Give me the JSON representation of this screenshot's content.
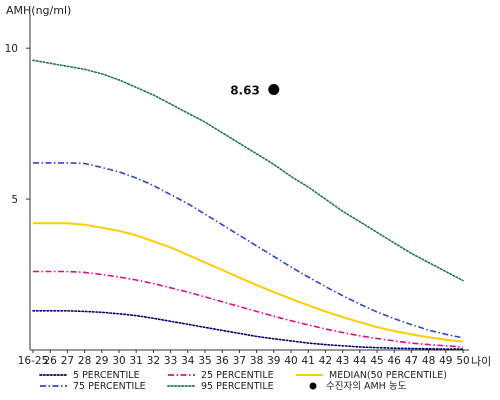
{
  "chart_data": {
    "type": "line",
    "ylabel": "AMH(ng/ml)",
    "xlabel": "나이",
    "x": [
      "16-25",
      "26",
      "27",
      "28",
      "29",
      "30",
      "31",
      "32",
      "33",
      "34",
      "35",
      "36",
      "37",
      "38",
      "39",
      "40",
      "41",
      "42",
      "43",
      "44",
      "45",
      "46",
      "47",
      "48",
      "49",
      "50"
    ],
    "y_ticks": [
      "10",
      "5"
    ],
    "ylim": [
      0,
      11
    ],
    "grid": false,
    "legend_position": "bottom",
    "series": [
      {
        "name": "5 PERCENTILE",
        "color": "#000066",
        "dash": "dotted",
        "values": [
          1.3,
          1.3,
          1.3,
          1.28,
          1.25,
          1.2,
          1.14,
          1.05,
          0.95,
          0.85,
          0.75,
          0.65,
          0.55,
          0.45,
          0.37,
          0.3,
          0.23,
          0.18,
          0.14,
          0.1,
          0.08,
          0.06,
          0.05,
          0.04,
          0.03,
          0.03
        ]
      },
      {
        "name": "75 PERCENTILE",
        "color": "#3344cc",
        "dash": "dash-dot",
        "values": [
          6.2,
          6.2,
          6.2,
          6.18,
          6.05,
          5.9,
          5.7,
          5.45,
          5.15,
          4.85,
          4.5,
          4.15,
          3.8,
          3.45,
          3.1,
          2.75,
          2.42,
          2.1,
          1.8,
          1.52,
          1.26,
          1.04,
          0.84,
          0.66,
          0.52,
          0.4
        ]
      },
      {
        "name": "25 PERCENTILE",
        "color": "#e0117f",
        "dash": "dash-dot",
        "values": [
          2.6,
          2.6,
          2.6,
          2.57,
          2.5,
          2.42,
          2.32,
          2.2,
          2.06,
          1.92,
          1.76,
          1.6,
          1.44,
          1.28,
          1.12,
          0.97,
          0.83,
          0.7,
          0.58,
          0.47,
          0.38,
          0.3,
          0.23,
          0.18,
          0.14,
          0.1
        ]
      },
      {
        "name": "95 PERCENTILE",
        "color": "#227744",
        "dash": "dotted",
        "values": [
          9.6,
          9.5,
          9.4,
          9.3,
          9.15,
          8.95,
          8.7,
          8.45,
          8.15,
          7.85,
          7.55,
          7.2,
          6.85,
          6.5,
          6.15,
          5.75,
          5.4,
          5.0,
          4.6,
          4.25,
          3.9,
          3.55,
          3.2,
          2.9,
          2.6,
          2.3
        ]
      },
      {
        "name": "MEDIAN(50 PERCENTILE)",
        "color": "#ffcc00",
        "dash": "solid",
        "values": [
          4.2,
          4.2,
          4.2,
          4.15,
          4.05,
          3.95,
          3.8,
          3.6,
          3.4,
          3.15,
          2.9,
          2.65,
          2.4,
          2.15,
          1.92,
          1.7,
          1.48,
          1.28,
          1.09,
          0.92,
          0.76,
          0.63,
          0.52,
          0.42,
          0.34,
          0.28
        ]
      }
    ],
    "patient_point": {
      "name": "수진자의 AMH 농도",
      "x": "39",
      "y": 8.63,
      "label": "8.63",
      "color": "#000000"
    }
  }
}
